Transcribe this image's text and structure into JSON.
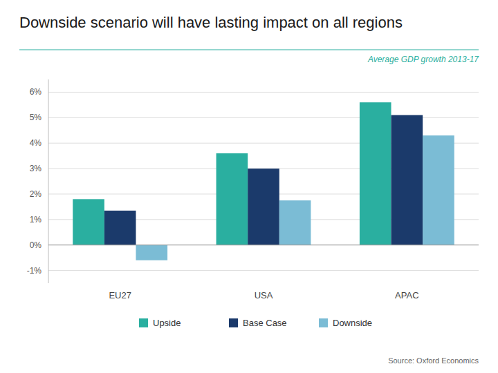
{
  "chart_data": {
    "type": "bar",
    "title": "Downside scenario will have lasting impact on all regions",
    "subtitle": "Average GDP growth  2013-17",
    "categories": [
      "EU27",
      "USA",
      "APAC"
    ],
    "series": [
      {
        "name": "Upside",
        "color": "#2AAFA0",
        "values": [
          1.8,
          3.6,
          5.6
        ]
      },
      {
        "name": "Base Case",
        "color": "#1B3A6B",
        "values": [
          1.35,
          3.0,
          5.1
        ]
      },
      {
        "name": "Downside",
        "color": "#7BBCD5",
        "values": [
          -0.6,
          1.75,
          4.3
        ]
      }
    ],
    "ylim": [
      -1.5,
      6.5
    ],
    "yticks": [
      {
        "value": -1,
        "label": "-1%"
      },
      {
        "value": 0,
        "label": "0%"
      },
      {
        "value": 1,
        "label": "1%"
      },
      {
        "value": 2,
        "label": "2%"
      },
      {
        "value": 3,
        "label": "3%"
      },
      {
        "value": 4,
        "label": "4%"
      },
      {
        "value": 5,
        "label": "5%"
      },
      {
        "value": 6,
        "label": "6%"
      }
    ],
    "grid": true,
    "legend": "bottom",
    "annotations": [
      "Source: Oxford Economics"
    ]
  }
}
